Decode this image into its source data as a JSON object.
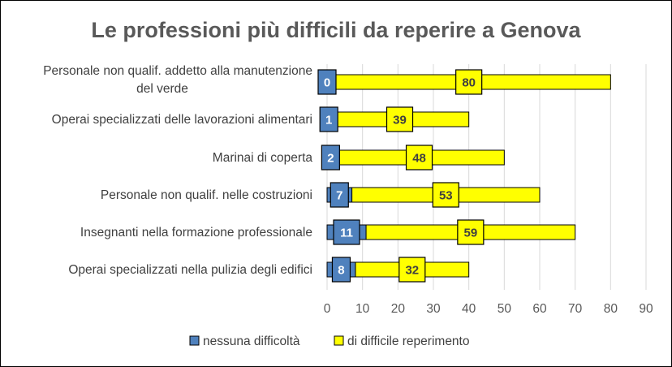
{
  "chart_data": {
    "type": "bar",
    "orientation": "horizontal",
    "stacked": true,
    "title": "Le professioni più difficili da reperire a Genova",
    "categories": [
      [
        "Personale non qualif. addetto alla manutenzione",
        "del verde"
      ],
      [
        "Operai specializzati delle lavorazioni alimentari"
      ],
      [
        "Marinai di coperta"
      ],
      [
        "Personale non qualif. nelle costruzioni"
      ],
      [
        "Insegnanti nella formazione professionale"
      ],
      [
        "Operai specializzati nella pulizia degli edifici"
      ]
    ],
    "series": [
      {
        "name": "nessuna difficoltà",
        "color": "#4f81bd",
        "values": [
          0,
          1,
          2,
          7,
          11,
          8
        ]
      },
      {
        "name": "di difficile reperimento",
        "color": "#ffff00",
        "values": [
          80,
          39,
          48,
          53,
          59,
          32
        ]
      }
    ],
    "value_labels": {
      "nessuna difficoltà": [
        "0",
        "1",
        "2",
        "7",
        "11",
        "8"
      ],
      "di difficile reperimento": [
        "80",
        "39",
        "48",
        "53",
        "59",
        "32"
      ]
    },
    "x_ticks": [
      "0",
      "10",
      "20",
      "30",
      "40",
      "50",
      "60",
      "70",
      "80",
      "90"
    ],
    "xlim": [
      0,
      90
    ],
    "xlabel": "",
    "ylabel": "",
    "grid": "vertical",
    "legend_position": "bottom"
  }
}
